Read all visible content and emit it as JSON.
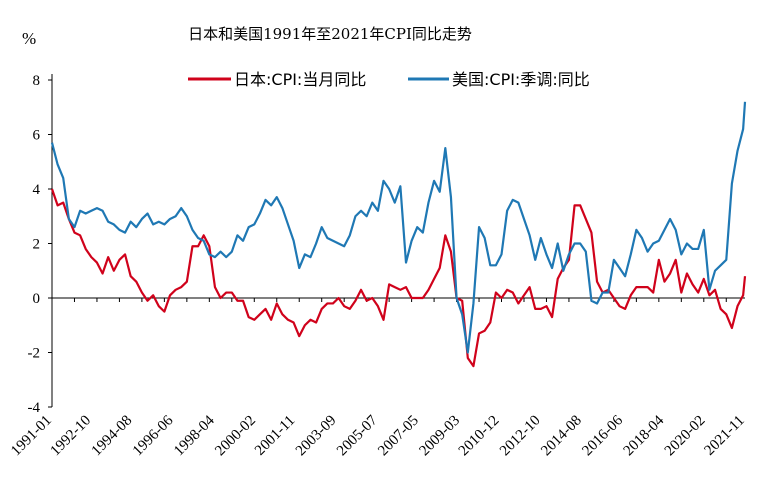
{
  "chart_data": {
    "type": "line",
    "title": "日本和美国1991年至2021年CPI同比走势",
    "ylabel": "%",
    "xlabel": "",
    "ylim": [
      -4,
      8
    ],
    "yticks": [
      -4,
      -2,
      0,
      2,
      4,
      6,
      8
    ],
    "x_range": [
      "1991-01",
      "2021-11"
    ],
    "x_tick_labels": [
      "1991-01",
      "1992-10",
      "1994-08",
      "1996-06",
      "1998-04",
      "2000-02",
      "2001-11",
      "2003-09",
      "2005-07",
      "2007-05",
      "2009-03",
      "2010-12",
      "2012-10",
      "2014-08",
      "2016-06",
      "2018-04",
      "2020-02",
      "2021-11"
    ],
    "legend_position": "top",
    "grid": false,
    "series": [
      {
        "name": "日本:CPI:当月同比",
        "color": "#d0021b",
        "points": [
          [
            "1991-01",
            4.0
          ],
          [
            "1991-04",
            3.4
          ],
          [
            "1991-07",
            3.5
          ],
          [
            "1991-10",
            2.9
          ],
          [
            "1992-01",
            2.4
          ],
          [
            "1992-04",
            2.3
          ],
          [
            "1992-07",
            1.8
          ],
          [
            "1992-10",
            1.5
          ],
          [
            "1993-01",
            1.3
          ],
          [
            "1993-04",
            0.9
          ],
          [
            "1993-07",
            1.5
          ],
          [
            "1993-10",
            1.0
          ],
          [
            "1994-01",
            1.4
          ],
          [
            "1994-04",
            1.6
          ],
          [
            "1994-07",
            0.8
          ],
          [
            "1994-10",
            0.6
          ],
          [
            "1995-01",
            0.2
          ],
          [
            "1995-04",
            -0.1
          ],
          [
            "1995-07",
            0.1
          ],
          [
            "1995-10",
            -0.3
          ],
          [
            "1996-01",
            -0.5
          ],
          [
            "1996-04",
            0.1
          ],
          [
            "1996-07",
            0.3
          ],
          [
            "1996-10",
            0.4
          ],
          [
            "1997-01",
            0.6
          ],
          [
            "1997-04",
            1.9
          ],
          [
            "1997-07",
            1.9
          ],
          [
            "1997-10",
            2.3
          ],
          [
            "1998-01",
            1.9
          ],
          [
            "1998-04",
            0.4
          ],
          [
            "1998-07",
            0.0
          ],
          [
            "1998-10",
            0.2
          ],
          [
            "1999-01",
            0.2
          ],
          [
            "1999-04",
            -0.1
          ],
          [
            "1999-07",
            -0.1
          ],
          [
            "1999-10",
            -0.7
          ],
          [
            "2000-01",
            -0.8
          ],
          [
            "2000-04",
            -0.6
          ],
          [
            "2000-07",
            -0.4
          ],
          [
            "2000-10",
            -0.8
          ],
          [
            "2001-01",
            -0.2
          ],
          [
            "2001-04",
            -0.6
          ],
          [
            "2001-07",
            -0.8
          ],
          [
            "2001-10",
            -0.9
          ],
          [
            "2002-01",
            -1.4
          ],
          [
            "2002-04",
            -1.0
          ],
          [
            "2002-07",
            -0.8
          ],
          [
            "2002-10",
            -0.9
          ],
          [
            "2003-01",
            -0.4
          ],
          [
            "2003-04",
            -0.2
          ],
          [
            "2003-07",
            -0.2
          ],
          [
            "2003-10",
            0.0
          ],
          [
            "2004-01",
            -0.3
          ],
          [
            "2004-04",
            -0.4
          ],
          [
            "2004-07",
            -0.1
          ],
          [
            "2004-10",
            0.3
          ],
          [
            "2005-01",
            -0.1
          ],
          [
            "2005-04",
            0.0
          ],
          [
            "2005-07",
            -0.3
          ],
          [
            "2005-10",
            -0.8
          ],
          [
            "2006-01",
            0.5
          ],
          [
            "2006-04",
            0.4
          ],
          [
            "2006-07",
            0.3
          ],
          [
            "2006-10",
            0.4
          ],
          [
            "2007-01",
            0.0
          ],
          [
            "2007-04",
            0.0
          ],
          [
            "2007-07",
            0.0
          ],
          [
            "2007-10",
            0.3
          ],
          [
            "2008-01",
            0.7
          ],
          [
            "2008-04",
            1.1
          ],
          [
            "2008-07",
            2.3
          ],
          [
            "2008-10",
            1.7
          ],
          [
            "2009-01",
            0.0
          ],
          [
            "2009-04",
            -0.1
          ],
          [
            "2009-07",
            -2.2
          ],
          [
            "2009-10",
            -2.5
          ],
          [
            "2010-01",
            -1.3
          ],
          [
            "2010-04",
            -1.2
          ],
          [
            "2010-07",
            -0.9
          ],
          [
            "2010-10",
            0.2
          ],
          [
            "2011-01",
            0.0
          ],
          [
            "2011-04",
            0.3
          ],
          [
            "2011-07",
            0.2
          ],
          [
            "2011-10",
            -0.2
          ],
          [
            "2012-01",
            0.1
          ],
          [
            "2012-04",
            0.4
          ],
          [
            "2012-07",
            -0.4
          ],
          [
            "2012-10",
            -0.4
          ],
          [
            "2013-01",
            -0.3
          ],
          [
            "2013-04",
            -0.7
          ],
          [
            "2013-07",
            0.7
          ],
          [
            "2013-10",
            1.1
          ],
          [
            "2014-01",
            1.4
          ],
          [
            "2014-04",
            3.4
          ],
          [
            "2014-07",
            3.4
          ],
          [
            "2014-10",
            2.9
          ],
          [
            "2015-01",
            2.4
          ],
          [
            "2015-04",
            0.6
          ],
          [
            "2015-07",
            0.2
          ],
          [
            "2015-10",
            0.3
          ],
          [
            "2016-01",
            0.0
          ],
          [
            "2016-04",
            -0.3
          ],
          [
            "2016-07",
            -0.4
          ],
          [
            "2016-10",
            0.1
          ],
          [
            "2017-01",
            0.4
          ],
          [
            "2017-04",
            0.4
          ],
          [
            "2017-07",
            0.4
          ],
          [
            "2017-10",
            0.2
          ],
          [
            "2018-01",
            1.4
          ],
          [
            "2018-04",
            0.6
          ],
          [
            "2018-07",
            0.9
          ],
          [
            "2018-10",
            1.4
          ],
          [
            "2019-01",
            0.2
          ],
          [
            "2019-04",
            0.9
          ],
          [
            "2019-07",
            0.5
          ],
          [
            "2019-10",
            0.2
          ],
          [
            "2020-01",
            0.7
          ],
          [
            "2020-04",
            0.1
          ],
          [
            "2020-07",
            0.3
          ],
          [
            "2020-10",
            -0.4
          ],
          [
            "2021-01",
            -0.6
          ],
          [
            "2021-04",
            -1.1
          ],
          [
            "2021-07",
            -0.3
          ],
          [
            "2021-10",
            0.1
          ],
          [
            "2021-11",
            0.8
          ]
        ]
      },
      {
        "name": "美国:CPI:季调:同比",
        "color": "#1f78b4",
        "points": [
          [
            "1991-01",
            5.7
          ],
          [
            "1991-04",
            4.9
          ],
          [
            "1991-07",
            4.4
          ],
          [
            "1991-10",
            2.9
          ],
          [
            "1992-01",
            2.6
          ],
          [
            "1992-04",
            3.2
          ],
          [
            "1992-07",
            3.1
          ],
          [
            "1992-10",
            3.2
          ],
          [
            "1993-01",
            3.3
          ],
          [
            "1993-04",
            3.2
          ],
          [
            "1993-07",
            2.8
          ],
          [
            "1993-10",
            2.7
          ],
          [
            "1994-01",
            2.5
          ],
          [
            "1994-04",
            2.4
          ],
          [
            "1994-07",
            2.8
          ],
          [
            "1994-10",
            2.6
          ],
          [
            "1995-01",
            2.9
          ],
          [
            "1995-04",
            3.1
          ],
          [
            "1995-07",
            2.7
          ],
          [
            "1995-10",
            2.8
          ],
          [
            "1996-01",
            2.7
          ],
          [
            "1996-04",
            2.9
          ],
          [
            "1996-07",
            3.0
          ],
          [
            "1996-10",
            3.3
          ],
          [
            "1997-01",
            3.0
          ],
          [
            "1997-04",
            2.5
          ],
          [
            "1997-07",
            2.2
          ],
          [
            "1997-10",
            2.1
          ],
          [
            "1998-01",
            1.6
          ],
          [
            "1998-04",
            1.5
          ],
          [
            "1998-07",
            1.7
          ],
          [
            "1998-10",
            1.5
          ],
          [
            "1999-01",
            1.7
          ],
          [
            "1999-04",
            2.3
          ],
          [
            "1999-07",
            2.1
          ],
          [
            "1999-10",
            2.6
          ],
          [
            "2000-01",
            2.7
          ],
          [
            "2000-04",
            3.1
          ],
          [
            "2000-07",
            3.6
          ],
          [
            "2000-10",
            3.4
          ],
          [
            "2001-01",
            3.7
          ],
          [
            "2001-04",
            3.3
          ],
          [
            "2001-07",
            2.7
          ],
          [
            "2001-10",
            2.1
          ],
          [
            "2002-01",
            1.1
          ],
          [
            "2002-04",
            1.6
          ],
          [
            "2002-07",
            1.5
          ],
          [
            "2002-10",
            2.0
          ],
          [
            "2003-01",
            2.6
          ],
          [
            "2003-04",
            2.2
          ],
          [
            "2003-07",
            2.1
          ],
          [
            "2003-10",
            2.0
          ],
          [
            "2004-01",
            1.9
          ],
          [
            "2004-04",
            2.3
          ],
          [
            "2004-07",
            3.0
          ],
          [
            "2004-10",
            3.2
          ],
          [
            "2005-01",
            3.0
          ],
          [
            "2005-04",
            3.5
          ],
          [
            "2005-07",
            3.2
          ],
          [
            "2005-10",
            4.3
          ],
          [
            "2006-01",
            4.0
          ],
          [
            "2006-04",
            3.5
          ],
          [
            "2006-07",
            4.1
          ],
          [
            "2006-10",
            1.3
          ],
          [
            "2007-01",
            2.1
          ],
          [
            "2007-04",
            2.6
          ],
          [
            "2007-07",
            2.4
          ],
          [
            "2007-10",
            3.5
          ],
          [
            "2008-01",
            4.3
          ],
          [
            "2008-04",
            3.9
          ],
          [
            "2008-07",
            5.5
          ],
          [
            "2008-10",
            3.7
          ],
          [
            "2009-01",
            0.0
          ],
          [
            "2009-04",
            -0.6
          ],
          [
            "2009-07",
            -2.0
          ],
          [
            "2009-10",
            -0.2
          ],
          [
            "2010-01",
            2.6
          ],
          [
            "2010-04",
            2.2
          ],
          [
            "2010-07",
            1.2
          ],
          [
            "2010-10",
            1.2
          ],
          [
            "2011-01",
            1.6
          ],
          [
            "2011-04",
            3.2
          ],
          [
            "2011-07",
            3.6
          ],
          [
            "2011-10",
            3.5
          ],
          [
            "2012-01",
            2.9
          ],
          [
            "2012-04",
            2.3
          ],
          [
            "2012-07",
            1.4
          ],
          [
            "2012-10",
            2.2
          ],
          [
            "2013-01",
            1.6
          ],
          [
            "2013-04",
            1.1
          ],
          [
            "2013-07",
            2.0
          ],
          [
            "2013-10",
            1.0
          ],
          [
            "2014-01",
            1.6
          ],
          [
            "2014-04",
            2.0
          ],
          [
            "2014-07",
            2.0
          ],
          [
            "2014-10",
            1.7
          ],
          [
            "2015-01",
            -0.1
          ],
          [
            "2015-04",
            -0.2
          ],
          [
            "2015-07",
            0.2
          ],
          [
            "2015-10",
            0.2
          ],
          [
            "2016-01",
            1.4
          ],
          [
            "2016-04",
            1.1
          ],
          [
            "2016-07",
            0.8
          ],
          [
            "2016-10",
            1.6
          ],
          [
            "2017-01",
            2.5
          ],
          [
            "2017-04",
            2.2
          ],
          [
            "2017-07",
            1.7
          ],
          [
            "2017-10",
            2.0
          ],
          [
            "2018-01",
            2.1
          ],
          [
            "2018-04",
            2.5
          ],
          [
            "2018-07",
            2.9
          ],
          [
            "2018-10",
            2.5
          ],
          [
            "2019-01",
            1.6
          ],
          [
            "2019-04",
            2.0
          ],
          [
            "2019-07",
            1.8
          ],
          [
            "2019-10",
            1.8
          ],
          [
            "2020-01",
            2.5
          ],
          [
            "2020-04",
            0.3
          ],
          [
            "2020-07",
            1.0
          ],
          [
            "2020-10",
            1.2
          ],
          [
            "2021-01",
            1.4
          ],
          [
            "2021-04",
            4.2
          ],
          [
            "2021-07",
            5.4
          ],
          [
            "2021-10",
            6.2
          ],
          [
            "2021-11",
            7.2
          ]
        ]
      }
    ]
  }
}
